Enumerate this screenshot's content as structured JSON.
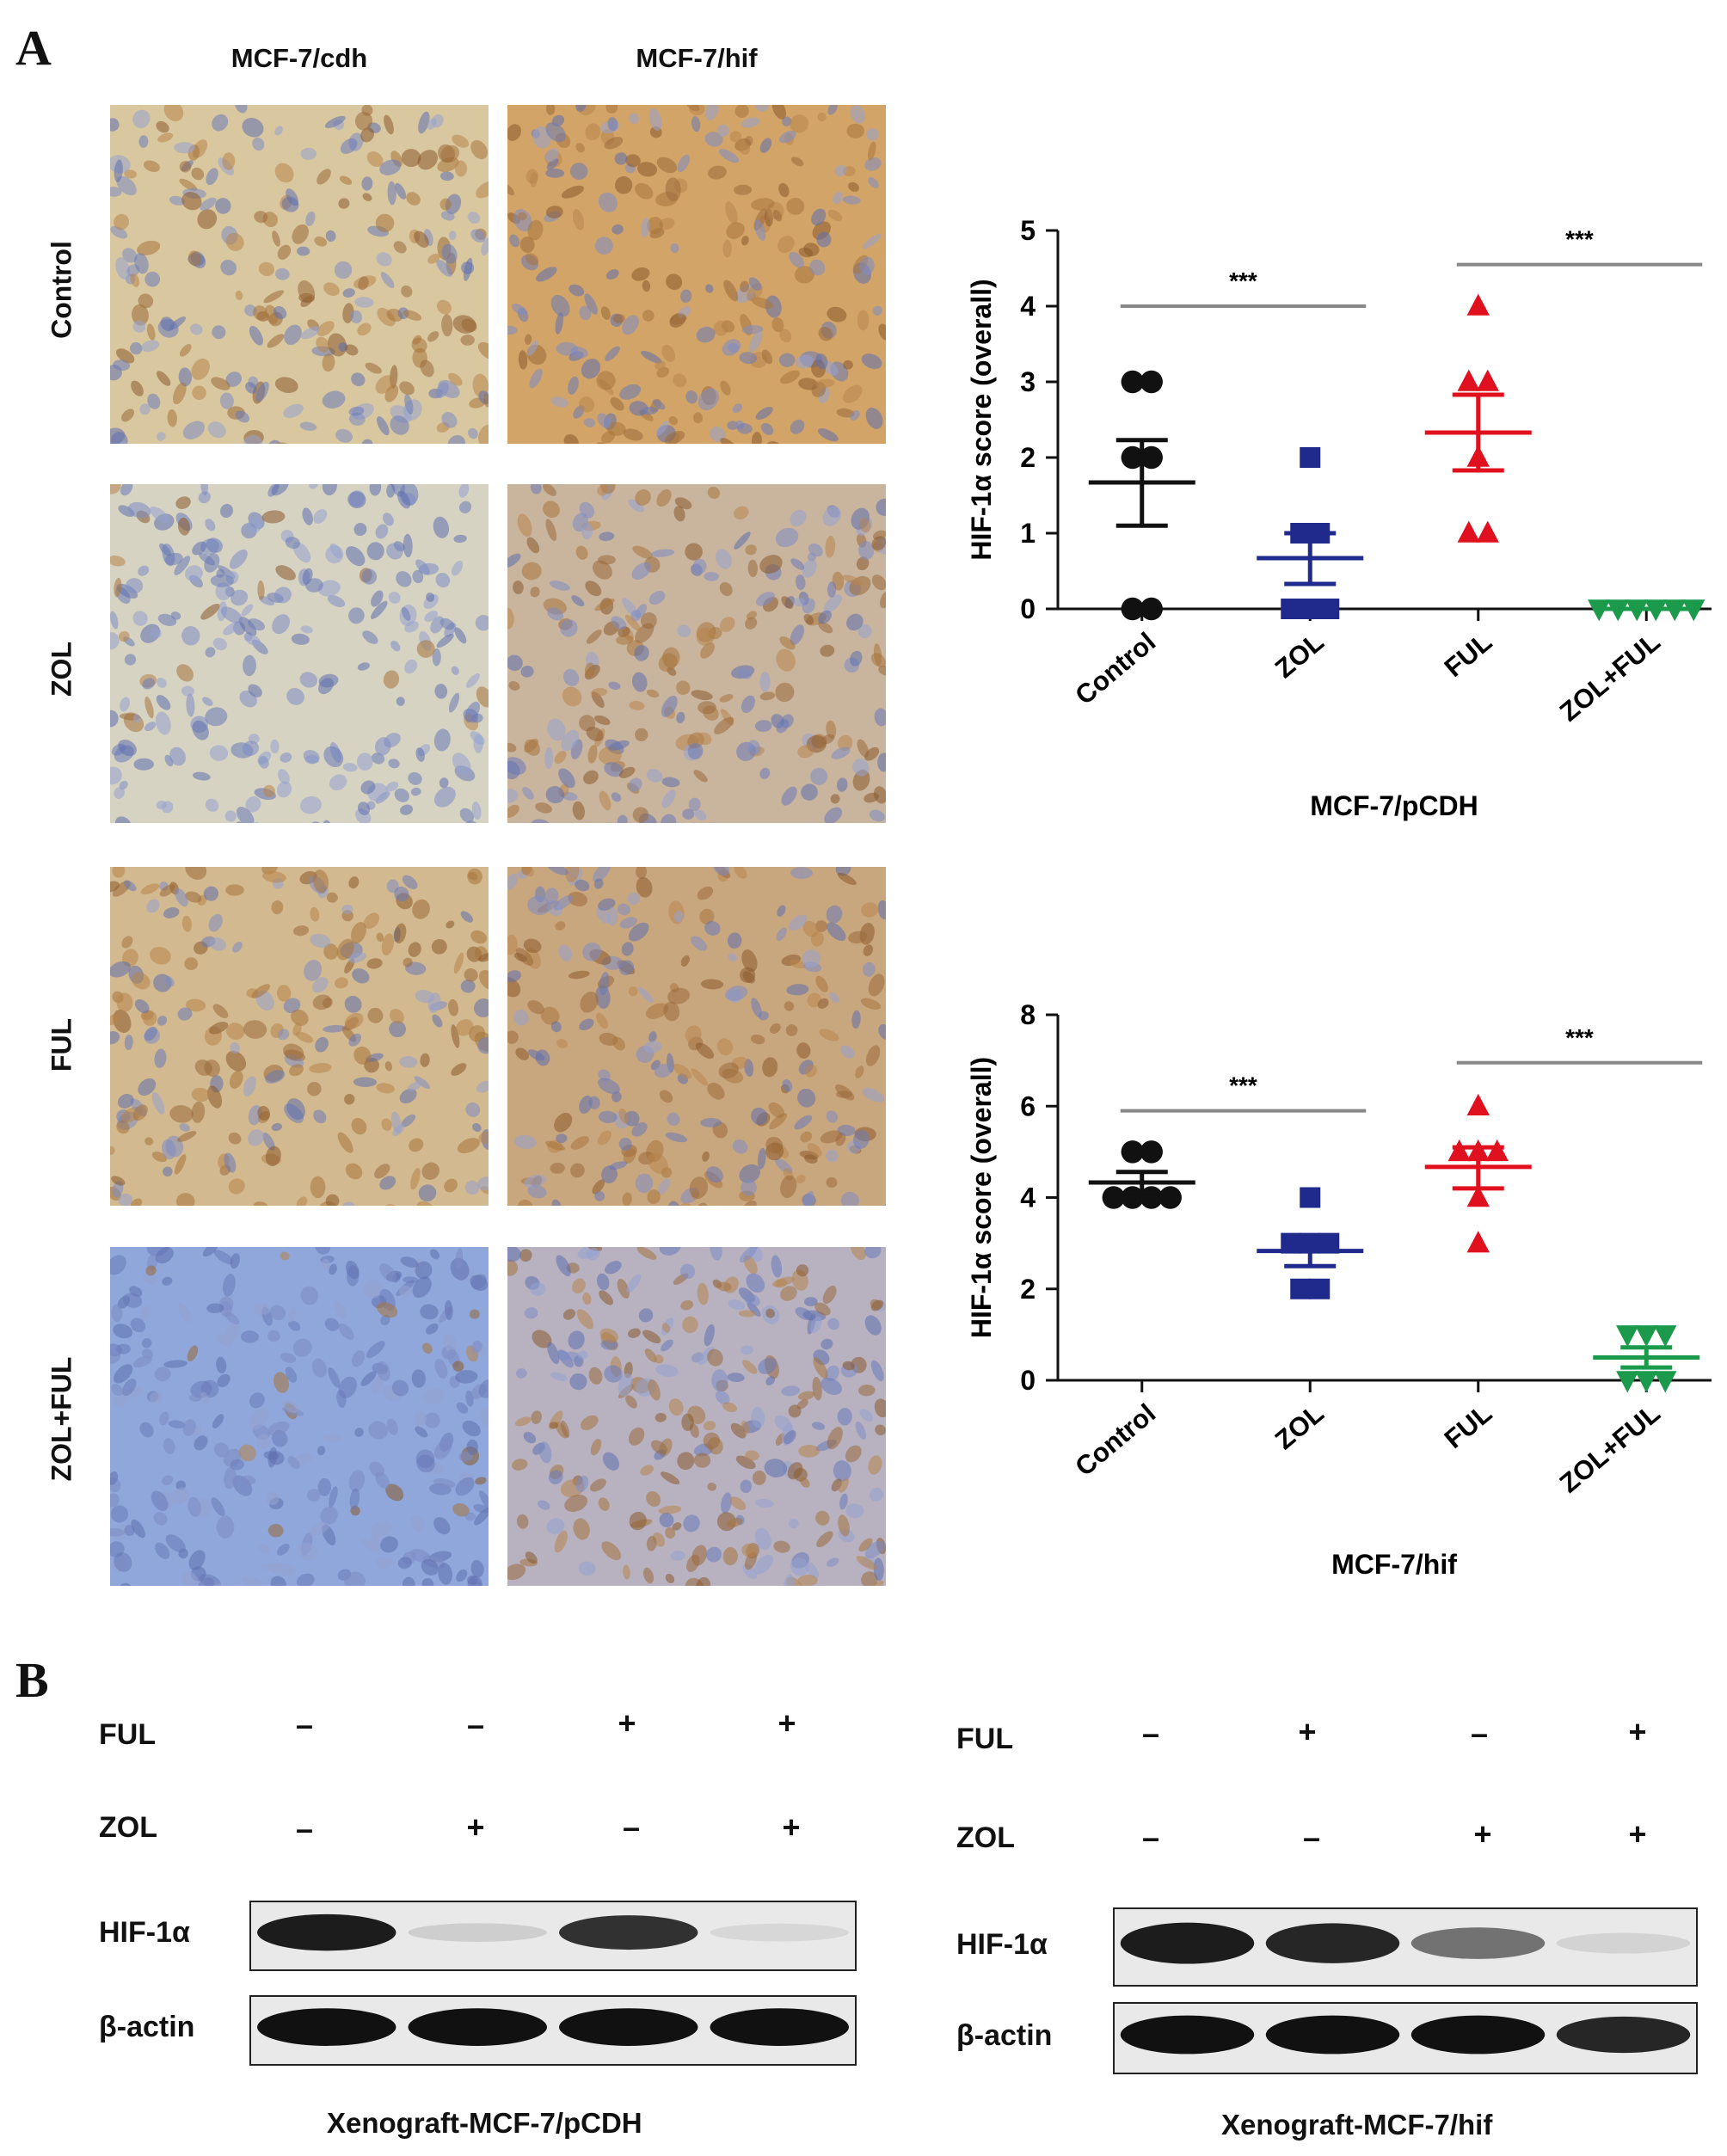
{
  "panels": {
    "a_letter": "A",
    "b_letter": "B"
  },
  "micrographs": {
    "columns": [
      "MCF-7/cdh",
      "MCF-7/hif"
    ],
    "rows": [
      "Control",
      "ZOL",
      "FUL",
      "ZOL+FUL"
    ],
    "tones": [
      [
        "#d9c7a0",
        "#d2a468"
      ],
      [
        "#d6d3c2",
        "#c9b49d"
      ],
      [
        "#d2b98f",
        "#c9a77e"
      ],
      [
        "#8fa7da",
        "#b7b1c0"
      ]
    ]
  },
  "chart_data": [
    {
      "type": "scatter",
      "title": "",
      "xlabel": "MCF-7/pCDH",
      "ylabel": "HIF-1α score (overall)",
      "ylim": [
        0,
        5
      ],
      "yticks": [
        "0",
        "1",
        "2",
        "3",
        "4",
        "5"
      ],
      "categories": [
        "Control",
        "ZOL",
        "FUL",
        "ZOL+FUL"
      ],
      "series": [
        {
          "marker": "circle",
          "color": "#111111",
          "points": [
            3,
            3,
            2,
            0,
            0,
            2
          ],
          "mean": 1.67,
          "sem_low": 1.1,
          "sem_high": 2.23
        },
        {
          "marker": "square",
          "color": "#1f2a8c",
          "points": [
            2,
            1,
            1,
            0,
            0,
            0
          ],
          "mean": 0.67,
          "sem_low": 0.33,
          "sem_high": 1.0
        },
        {
          "marker": "triangle-up",
          "color": "#e0101e",
          "points": [
            4,
            3,
            3,
            2,
            1,
            1
          ],
          "mean": 2.33,
          "sem_low": 1.83,
          "sem_high": 2.83
        },
        {
          "marker": "triangle-down",
          "color": "#1a9a4a",
          "points": [
            0,
            0,
            0,
            0,
            0,
            0
          ],
          "mean": 0,
          "sem_low": 0,
          "sem_high": 0
        }
      ],
      "significance": [
        {
          "from": 0,
          "to": 1,
          "y": 4.0,
          "label": "***"
        },
        {
          "from": 2,
          "to": 3,
          "y": 4.55,
          "label": "***"
        }
      ]
    },
    {
      "type": "scatter",
      "title": "",
      "xlabel": "MCF-7/hif",
      "ylabel": "HIF-1α score (overall)",
      "ylim": [
        0,
        8
      ],
      "yticks": [
        "0",
        "2",
        "4",
        "6",
        "8"
      ],
      "categories": [
        "Control",
        "ZOL",
        "FUL",
        "ZOL+FUL"
      ],
      "series": [
        {
          "marker": "circle",
          "color": "#111111",
          "points": [
            5,
            5,
            4,
            4,
            4,
            4
          ],
          "mean": 4.33,
          "sem_low": 4.1,
          "sem_high": 4.56
        },
        {
          "marker": "square",
          "color": "#1f2a8c",
          "points": [
            4,
            3,
            3,
            2,
            2,
            3
          ],
          "mean": 2.83,
          "sem_low": 2.5,
          "sem_high": 3.17
        },
        {
          "marker": "triangle-up",
          "color": "#e0101e",
          "points": [
            6,
            5,
            5,
            4,
            3,
            5
          ],
          "mean": 4.67,
          "sem_low": 4.2,
          "sem_high": 5.1
        },
        {
          "marker": "triangle-down",
          "color": "#1a9a4a",
          "points": [
            1,
            1,
            1,
            0,
            0,
            0
          ],
          "mean": 0.5,
          "sem_low": 0.28,
          "sem_high": 0.72
        }
      ],
      "significance": [
        {
          "from": 0,
          "to": 1,
          "y": 5.9,
          "label": "***"
        },
        {
          "from": 2,
          "to": 3,
          "y": 6.95,
          "label": "***"
        }
      ]
    }
  ],
  "western_blots": [
    {
      "caption": "Xenograft-MCF-7/pCDH",
      "conditions": [
        {
          "label": "FUL",
          "signs": [
            "–",
            "–",
            "+",
            "+"
          ]
        },
        {
          "label": "ZOL",
          "signs": [
            "–",
            "+",
            "–",
            "+"
          ]
        }
      ],
      "bands": [
        {
          "label": "HIF-1α",
          "intensities": [
            0.95,
            0.12,
            0.85,
            0.08
          ]
        },
        {
          "label": "β-actin",
          "intensities": [
            1.0,
            1.0,
            1.0,
            1.0
          ]
        }
      ]
    },
    {
      "caption": "Xenograft-MCF-7/hif",
      "conditions": [
        {
          "label": "FUL",
          "signs": [
            "–",
            "+",
            "–",
            "+"
          ]
        },
        {
          "label": "ZOL",
          "signs": [
            "–",
            "–",
            "+",
            "+"
          ]
        }
      ],
      "bands": [
        {
          "label": "HIF-1α",
          "intensities": [
            0.95,
            0.9,
            0.55,
            0.1
          ]
        },
        {
          "label": "β-actin",
          "intensities": [
            1.0,
            1.0,
            1.0,
            0.9
          ]
        }
      ]
    }
  ]
}
